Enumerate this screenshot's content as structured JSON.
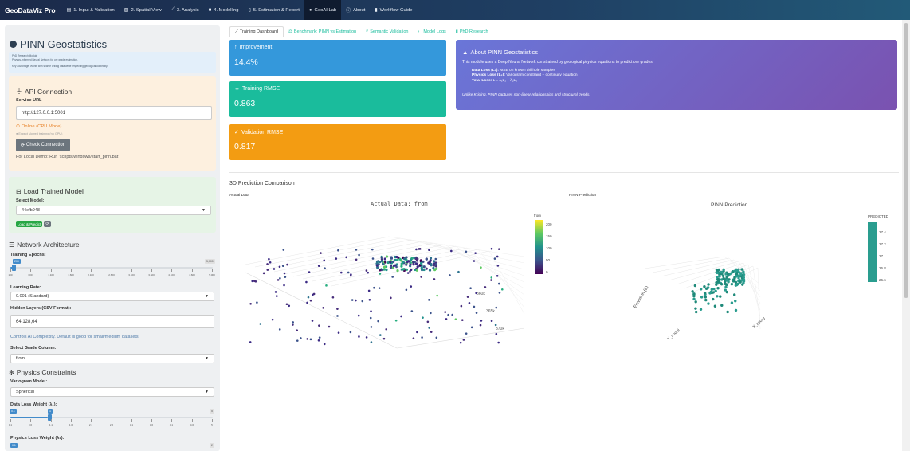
{
  "nav": {
    "brand": "GeoDataViz Pro",
    "items": [
      {
        "icon": "database-icon",
        "label": "1. Input & Validation"
      },
      {
        "icon": "map-icon",
        "label": "2. Spatial View"
      },
      {
        "icon": "chart-line-icon",
        "label": "3. Analysis"
      },
      {
        "icon": "cubes-icon",
        "label": "4. Modelling"
      },
      {
        "icon": "file-icon",
        "label": "5. Estimation & Report"
      },
      {
        "icon": "brain-icon",
        "label": "GeoAI Lab",
        "active": true
      },
      {
        "icon": "info-icon",
        "label": "About"
      },
      {
        "icon": "book-icon",
        "label": "Workflow Guide"
      }
    ]
  },
  "sidebar": {
    "title": "PINN Geostatistics",
    "info_title": "PhD Research Module",
    "info_line1": "Physics-Informed Neural Network for ore grade estimation.",
    "info_line2": "Key advantage: Works with sparse drilling data while respecting geological continuity.",
    "api": {
      "title": "API Connection",
      "service_url_label": "Service URL",
      "service_url_value": "http://127.0.0.1:5001",
      "status": "Online (CPU Mode)",
      "status_sub": "Expect slowed training (no GPU)",
      "check_button": "Check Connection",
      "local_demo": "For Local Demo: Run 'scripts/windows/start_pinn.bat'"
    },
    "model": {
      "title": "Load Trained Model",
      "select_label": "Select Model:",
      "select_value": "44efb948",
      "load_button": "Load & Predict"
    },
    "network": {
      "title": "Network Architecture",
      "epochs_label": "Training Epochs:",
      "epochs_value": "200",
      "epochs_max": "5,000",
      "epochs_ticks": [
        "100",
        "600",
        "1,100",
        "1,600",
        "2,100",
        "2,600",
        "3,100",
        "3,600",
        "4,100",
        "4,600",
        "5,000"
      ],
      "lr_label": "Learning Rate:",
      "lr_value": "0.001 (Standard)",
      "hidden_label": "Hidden Layers (CSV Format):",
      "hidden_value": "64,128,64",
      "hidden_help": "Controls AI Complexity. Default is good for small/medium datasets.",
      "grade_label": "Select Grade Column:",
      "grade_value": "from"
    },
    "physics": {
      "title": "Physics Constraints",
      "variogram_label": "Variogram Model:",
      "variogram_value": "Spherical",
      "data_weight_label": "Data Loss Weight (λ₁):",
      "data_weight_min": "0.1",
      "data_weight_value": "1",
      "data_weight_max": "5",
      "data_weight_ticks": [
        "0.1",
        "0.6",
        "1.1",
        "1.6",
        "2.1",
        "2.6",
        "3.1",
        "3.6",
        "4.1",
        "4.6",
        "5"
      ],
      "physics_weight_label": "Physics Loss Weight (λ₂):",
      "physics_weight_value": "0.1",
      "physics_weight_max": "2"
    }
  },
  "tabs": [
    {
      "icon": "chart-area-icon",
      "label": "Training Dashboard",
      "active": true
    },
    {
      "icon": "balance-icon",
      "label": "Benchmark: PINN vs Estimation"
    },
    {
      "icon": "search-icon",
      "label": "Semantic Validation"
    },
    {
      "icon": "terminal-icon",
      "label": "Model Logs"
    },
    {
      "icon": "book-icon",
      "label": "PhD Research"
    }
  ],
  "cards": [
    {
      "title": "Improvement",
      "icon": "arrow-up-icon",
      "value": "14.4%",
      "color": "#3498db"
    },
    {
      "title": "Training RMSE",
      "icon": "arrows-h-icon",
      "value": "0.863",
      "color": "#1abc9c"
    },
    {
      "title": "Validation RMSE",
      "icon": "check-double-icon",
      "value": "0.817",
      "color": "#f39c12"
    }
  ],
  "about": {
    "title": "About PINN Geostatistics",
    "intro": "This module uses a Deep Neural Network constrained by geological physics equations to predict ore grades.",
    "bullets": [
      {
        "bold": "Data Loss (L₁):",
        "text": " MSE on known drillhole samples"
      },
      {
        "bold": "Physics Loss (L₂):",
        "text": " Variogram constraint + continuity equation"
      },
      {
        "bold": "Total Loss:",
        "text": " L = λ₁L₁ + λ₂L₂"
      }
    ],
    "note": "Unlike Kriging, PINN captures non-linear relationships and structural trends."
  },
  "comparison": {
    "title": "3D Prediction Comparison",
    "actual_label": "Actual Data",
    "actual_plot_title": "Actual Data: from",
    "actual_colorbar_title": "from",
    "actual_colorbar_ticks": [
      "200",
      "150",
      "100",
      "50",
      "0"
    ],
    "actual_axis_ticks": [
      "360k",
      "365k",
      "370k"
    ],
    "pinn_label": "PINN Prediction",
    "pinn_plot_title": "PINN Prediction",
    "pinn_colorbar_title": "PREDICTED",
    "pinn_colorbar_ticks": [
      "27.4",
      "27.2",
      "27",
      "26.8",
      "26.6"
    ],
    "pinn_axis_labels": {
      "z": "Elevation (Z)",
      "y": "Y_coord",
      "x": "X_coord"
    }
  },
  "colors": {
    "nav_bg": "#1f3f63",
    "blue": "#3498db",
    "teal": "#1abc9c",
    "orange": "#f39c12",
    "purple": "#7a52b0",
    "accent_green": "#18bc9c"
  }
}
